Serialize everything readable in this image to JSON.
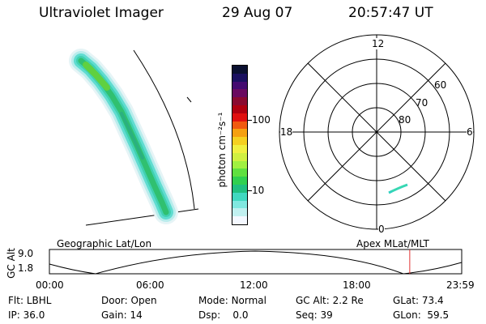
{
  "header": {
    "instrument": "Ultraviolet Imager",
    "date": "29 Aug 07",
    "time": "20:57:47 UT"
  },
  "colorbar": {
    "unit_label": "photon cm⁻²s⁻¹",
    "ticks": [
      "100",
      "10"
    ],
    "colors": [
      "#0a1030",
      "#1a1060",
      "#440a70",
      "#6a0a60",
      "#8a0a30",
      "#b00010",
      "#e01010",
      "#f05a10",
      "#f5a010",
      "#f5d020",
      "#f0f040",
      "#d0f040",
      "#a0f040",
      "#60e040",
      "#30d050",
      "#20c080",
      "#40d8c0",
      "#80e8e0",
      "#c0f0f0",
      "#f4f8ff"
    ]
  },
  "polar": {
    "mlt_labels": {
      "top": "12",
      "left": "18",
      "right": "6",
      "bottom": "0"
    },
    "lat_labels": [
      "60",
      "70",
      "80"
    ]
  },
  "altitude_panel": {
    "y_axis_label": "GC Alt",
    "y_ticks": [
      "9.0",
      "1.8"
    ],
    "left_caption": "Geographic Lat/Lon",
    "right_caption": "Apex MLat/MLT",
    "x_ticks": [
      "00:00",
      "06:00",
      "12:00",
      "18:00",
      "23:59"
    ],
    "current_time_fraction": 0.874
  },
  "footer": {
    "row1": [
      {
        "label": "Flt:",
        "value": "LBHL"
      },
      {
        "label": "Door:",
        "value": "Open"
      },
      {
        "label": "Mode:",
        "value": "Normal"
      },
      {
        "label": "GC Alt:",
        "value": "2.2 Re"
      },
      {
        "label": "GLat:",
        "value": "73.4"
      }
    ],
    "row2": [
      {
        "label": "IP:",
        "value": "36.0"
      },
      {
        "label": "Gain:",
        "value": "14"
      },
      {
        "label": "Dsp:",
        "value": "0.0"
      },
      {
        "label": "Seq:",
        "value": "39"
      },
      {
        "label": "GLon:",
        "value": "59.5"
      }
    ]
  }
}
